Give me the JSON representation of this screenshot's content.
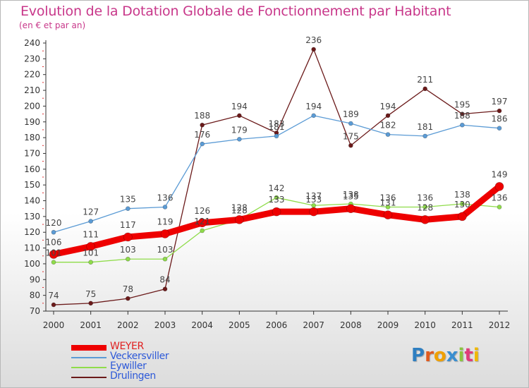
{
  "title": "Evolution de la Dotation Globale de Fonctionnement par Habitant",
  "subtitle": "(en € et par an)",
  "colors": {
    "title": "#c8378a",
    "axis": "#333333",
    "tick_marks": "#e03030"
  },
  "logo": {
    "letters": [
      "P",
      "r",
      "o",
      "x",
      "i",
      "t",
      "i"
    ],
    "colors": [
      "#2f7fc1",
      "#e05a1e",
      "#f0a000",
      "#3a8ed0",
      "#8bc53f",
      "#e03c7a",
      "#f0b800"
    ]
  },
  "chart_data": {
    "type": "line",
    "title": "Evolution de la Dotation Globale de Fonctionnement par Habitant",
    "subtitle": "(en € et par an)",
    "xlabel": "",
    "ylabel": "",
    "x": [
      "2000",
      "2001",
      "2002",
      "2003",
      "2004",
      "2005",
      "2006",
      "2007",
      "2008",
      "2009",
      "2010",
      "2011",
      "2012"
    ],
    "ylim": [
      70,
      240
    ],
    "yticks": [
      70,
      80,
      90,
      100,
      110,
      120,
      130,
      140,
      150,
      160,
      170,
      180,
      190,
      200,
      210,
      220,
      230,
      240
    ],
    "grid": false,
    "legend_position": "bottom-left",
    "series": [
      {
        "name": "Drulingen",
        "color": "#6b1a1a",
        "line_width": 1.3,
        "marker_radius": 3,
        "values": [
          74,
          75,
          78,
          84,
          188,
          194,
          183,
          236,
          175,
          194,
          211,
          195,
          197
        ],
        "labels": [
          "74",
          "75",
          "78",
          "84",
          "188",
          "194",
          "183",
          "236",
          "175",
          "194",
          "211",
          "195",
          "197"
        ]
      },
      {
        "name": "Eywiller",
        "color": "#8fdc4a",
        "line_width": 1.3,
        "marker_radius": 3,
        "values": [
          101,
          101,
          103,
          103,
          121,
          128,
          142,
          137,
          138,
          136,
          136,
          138,
          136
        ],
        "labels": [
          "101",
          "101",
          "103",
          "103",
          "121",
          "128",
          "142",
          "137",
          "138",
          "136",
          "136",
          "138",
          "136"
        ]
      },
      {
        "name": "Veckersviller",
        "color": "#5b9bd5",
        "line_width": 1.3,
        "marker_radius": 3,
        "values": [
          120,
          127,
          135,
          136,
          176,
          179,
          181,
          194,
          189,
          182,
          181,
          188,
          186
        ],
        "labels": [
          "120",
          "127",
          "135",
          "136",
          "176",
          "179",
          "181",
          "194",
          "189",
          "182",
          "181",
          "188",
          "186"
        ]
      },
      {
        "name": "WEYER",
        "color": "#ee0000",
        "line_width": 9,
        "marker_radius": 6,
        "values": [
          106,
          111,
          117,
          119,
          126,
          128,
          133,
          133,
          135,
          131,
          128,
          130,
          149
        ],
        "labels": [
          "106",
          "111",
          "117",
          "119",
          "126",
          "128",
          "133",
          "133",
          "135",
          "131",
          "128",
          "130",
          "149"
        ]
      }
    ],
    "legend": [
      {
        "name": "WEYER",
        "color": "#ee0000",
        "thickness": 8
      },
      {
        "name": "Veckersviller",
        "color": "#5b9bd5",
        "thickness": 2
      },
      {
        "name": "Eywiller",
        "color": "#8fdc4a",
        "thickness": 2
      },
      {
        "name": "Drulingen",
        "color": "#6b1a1a",
        "thickness": 2
      }
    ]
  }
}
